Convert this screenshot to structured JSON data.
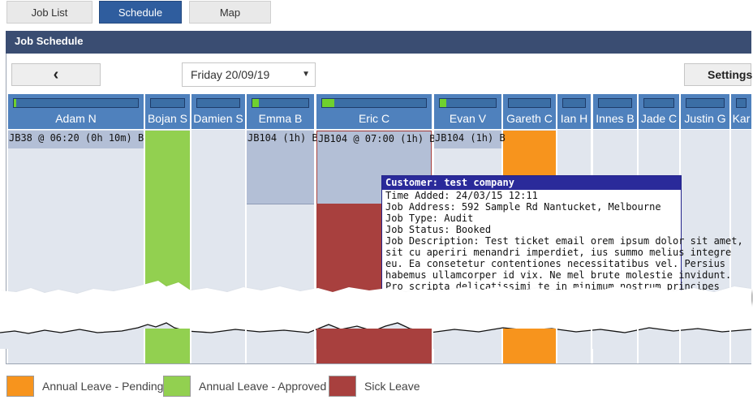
{
  "tabs": [
    {
      "label": "Job List"
    },
    {
      "label": "Schedule"
    },
    {
      "label": "Map"
    }
  ],
  "header": {
    "title": "Job Schedule"
  },
  "toolbar": {
    "prev_icon": "‹",
    "date_value": "Friday 20/09/19",
    "date_arrow": "▼",
    "settings_label": "Settings"
  },
  "staff": [
    {
      "name": "Adam N",
      "capacity": 0.02
    },
    {
      "name": "Bojan S",
      "capacity": 0
    },
    {
      "name": "Damien S",
      "capacity": 0
    },
    {
      "name": "Emma B",
      "capacity": 0.12
    },
    {
      "name": "Eric C",
      "capacity": 0.12
    },
    {
      "name": "Evan V",
      "capacity": 0.12
    },
    {
      "name": "Gareth C",
      "capacity": 0
    },
    {
      "name": "Ian H",
      "capacity": 0
    },
    {
      "name": "Innes B",
      "capacity": 0
    },
    {
      "name": "Jade C",
      "capacity": 0
    },
    {
      "name": "Justin G",
      "capacity": 0
    },
    {
      "name": "Kar",
      "capacity": 0
    }
  ],
  "jobs": {
    "adam": "JB38 @ 06:20 (0h 10m) B",
    "emma": "JB104 (1h) B",
    "eric": "JB104 @ 07:00 (1h) B",
    "evan": "JB104 (1h) B"
  },
  "tooltip": {
    "title": "Customer: test company",
    "lines": [
      "Time Added: 24/03/15 12:11",
      "Job Address: 592 Sample Rd Nantucket, Melbourne",
      "Job Type: Audit",
      "Job Status: Booked",
      "Job Description: Test ticket email orem ipsum dolor sit amet,",
      "sit cu aperiri menandri imperdiet, ius summo melius integre",
      "eu. Ea consetetur contentiones necessitatibus vel. Persius",
      "habemus ullamcorper id vix. Ne mel brute molestie invidunt.",
      "Pro scripta delicatissimi te in minimum nostrum principes"
    ]
  },
  "legend": [
    {
      "label": "Annual Leave - Pending",
      "color": "#f7941d"
    },
    {
      "label": "Annual Leave - Approved",
      "color": "#92d050"
    },
    {
      "label": "Sick Leave",
      "color": "#a8403e"
    }
  ],
  "colors": {
    "accent": "#2f5d9e",
    "header_bar": "#3a4d72",
    "column_header": "#4f81bd",
    "job_block": "#b3bfd6",
    "capacity_fill": "#6fd12e"
  }
}
